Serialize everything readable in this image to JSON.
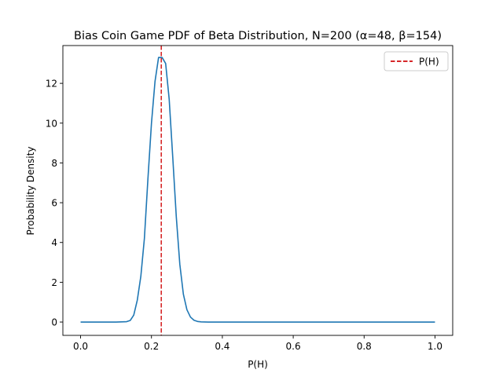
{
  "chart_data": {
    "type": "line",
    "title": "Bias Coin Game PDF of Beta Distribution, N=200 (α=48, β=154)",
    "xlabel": "P(H)",
    "ylabel": "Probability Density",
    "xlim": [
      -0.05,
      1.05
    ],
    "ylim": [
      -0.67,
      13.9
    ],
    "xticks": [
      0.0,
      0.2,
      0.4,
      0.6,
      0.8,
      1.0
    ],
    "xtick_labels": [
      "0.0",
      "0.2",
      "0.4",
      "0.6",
      "0.8",
      "1.0"
    ],
    "yticks": [
      0,
      2,
      4,
      6,
      8,
      10,
      12
    ],
    "ytick_labels": [
      "0",
      "2",
      "4",
      "6",
      "8",
      "10",
      "12"
    ],
    "grid": false,
    "legend_position": "top-right",
    "series": [
      {
        "color": "#1f77b4",
        "style": "solid",
        "x": [
          0.0,
          0.05,
          0.1,
          0.13,
          0.14,
          0.15,
          0.16,
          0.17,
          0.18,
          0.19,
          0.2,
          0.21,
          0.22,
          0.23,
          0.24,
          0.25,
          0.26,
          0.27,
          0.28,
          0.29,
          0.3,
          0.31,
          0.32,
          0.33,
          0.34,
          0.36,
          0.4,
          0.6,
          0.8,
          1.0
        ],
        "values": [
          0.0,
          0.0,
          0.0,
          0.02,
          0.08,
          0.35,
          1.1,
          2.3,
          4.2,
          7.2,
          10.0,
          12.1,
          13.3,
          13.3,
          13.0,
          11.2,
          8.3,
          5.3,
          2.9,
          1.4,
          0.62,
          0.25,
          0.09,
          0.03,
          0.01,
          0.0,
          0.0,
          0.0,
          0.0,
          0.0
        ]
      }
    ],
    "reference_lines": [
      {
        "name": "P(H)",
        "orientation": "vertical",
        "x": 0.2277,
        "color": "#d62728",
        "style": "dashed"
      }
    ],
    "legend": [
      {
        "label": "P(H)",
        "color": "#d62728",
        "style": "dashed"
      }
    ]
  }
}
